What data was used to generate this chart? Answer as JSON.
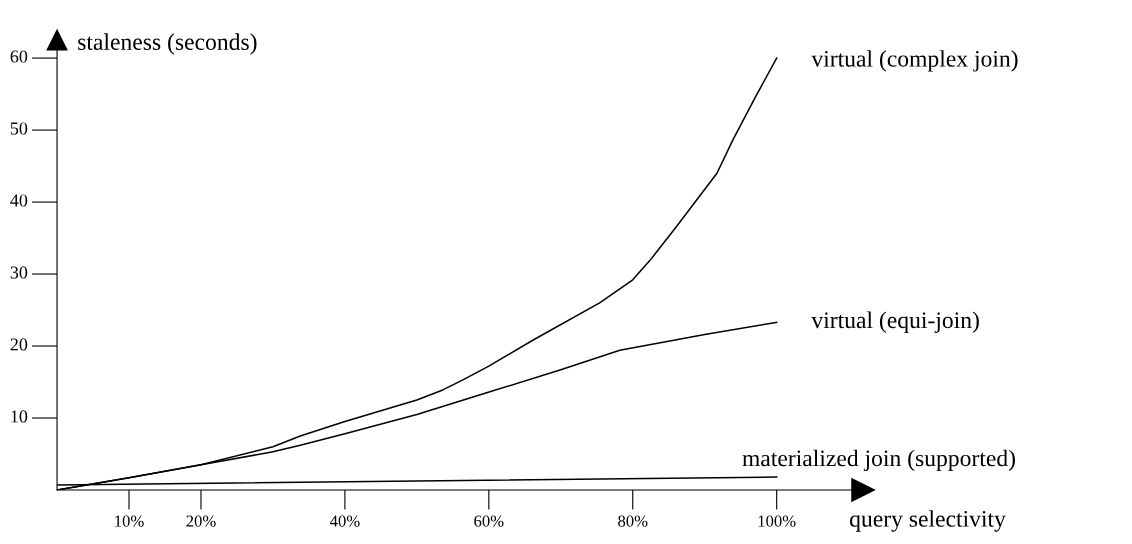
{
  "chart_data": {
    "type": "line",
    "xlabel": "query selectivity",
    "ylabel": "staleness (seconds)",
    "xlim": [
      0,
      112
    ],
    "ylim": [
      0,
      62.5
    ],
    "xticks": [
      {
        "value": 10,
        "label": "10%"
      },
      {
        "value": 20,
        "label": "20%"
      },
      {
        "value": 40,
        "label": "40%"
      },
      {
        "value": 60,
        "label": "60%"
      },
      {
        "value": 80,
        "label": "80%"
      },
      {
        "value": 100,
        "label": "100%"
      }
    ],
    "yticks": [
      10,
      20,
      30,
      40,
      50,
      60
    ],
    "grid": false,
    "marker": "none",
    "line_style": "solid",
    "series": [
      {
        "name": "virtual (complex join)",
        "color": "#000000",
        "x": [
          0,
          10,
          20,
          30,
          33.8,
          40,
          50,
          53.6,
          56.4,
          60,
          66.1,
          75.4,
          80,
          82.4,
          86,
          91.7,
          93.9,
          97,
          100
        ],
        "values": [
          0,
          1.7,
          3.5,
          6,
          7.5,
          9.5,
          12.5,
          13.9,
          15.3,
          17.2,
          20.8,
          26,
          29.2,
          31.9,
          36.5,
          44,
          48.6,
          54.5,
          60
        ]
      },
      {
        "name": "virtual (equi-join)",
        "color": "#000000",
        "x": [
          0,
          10,
          20,
          30,
          33.8,
          40,
          50,
          59.7,
          70,
          78.2,
          90,
          100
        ],
        "values": [
          0,
          1.7,
          3.5,
          5.3,
          6.2,
          7.8,
          10.5,
          13.5,
          16.7,
          19.4,
          21.6,
          23.3
        ]
      },
      {
        "name": "materialized join (supported)",
        "color": "#000000",
        "x": [
          0,
          100
        ],
        "values": [
          0.7,
          1.8
        ]
      }
    ]
  }
}
